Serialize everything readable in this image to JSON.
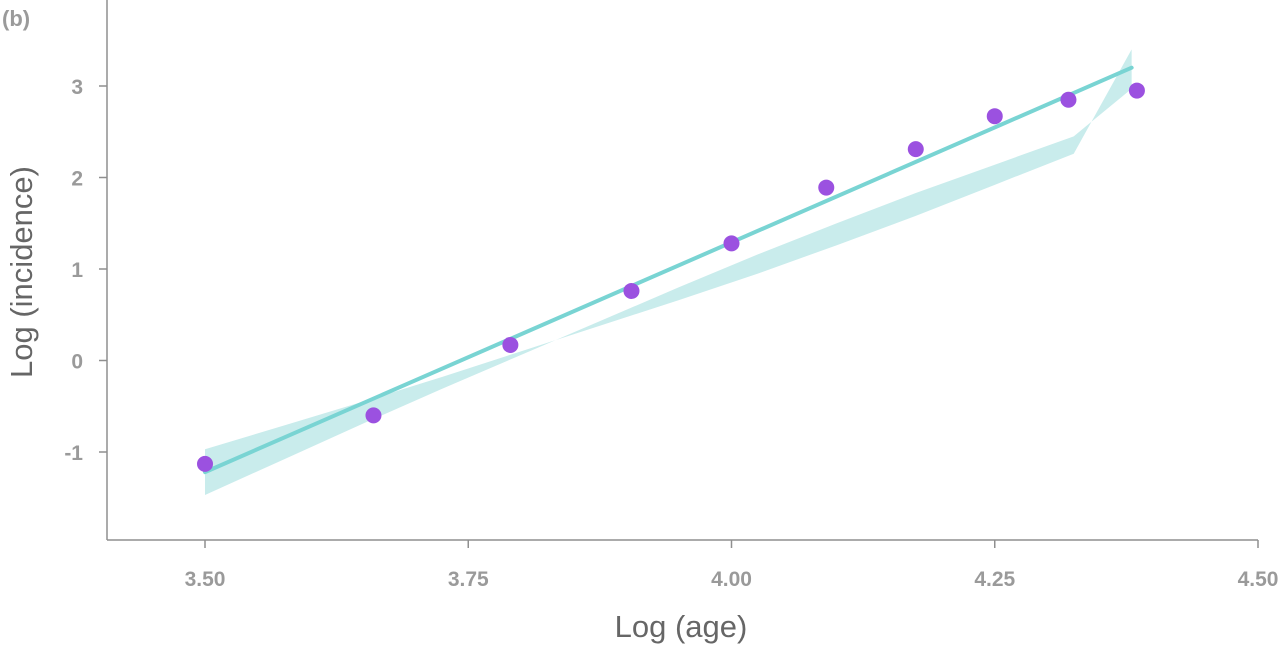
{
  "panel_label": "(b)",
  "chart_data": {
    "type": "scatter",
    "title": "",
    "xlabel": "Log (age)",
    "ylabel": "Log (incidence)",
    "xlim": [
      3.45,
      4.5
    ],
    "ylim": [
      -1.95,
      3.9
    ],
    "x_ticks": [
      3.5,
      3.75,
      4.0,
      4.25,
      4.5
    ],
    "x_tick_labels": [
      "3.50",
      "3.75",
      "4.00",
      "4.25",
      "4.50"
    ],
    "y_ticks": [
      -1,
      0,
      1,
      2,
      3
    ],
    "y_tick_labels": [
      "-1",
      "0",
      "1",
      "2",
      "3"
    ],
    "grid": false,
    "legend": "none",
    "series": [
      {
        "kind": "points",
        "color": "#9b51e0",
        "x": [
          3.5,
          3.66,
          3.79,
          3.905,
          4.0,
          4.09,
          4.175,
          4.25,
          4.32,
          4.385
        ],
        "y": [
          -1.13,
          -0.6,
          0.17,
          0.76,
          1.28,
          1.89,
          2.31,
          2.67,
          2.85,
          2.95
        ]
      },
      {
        "kind": "fit-line",
        "color": "#79d4d3",
        "band_color": "#c9ecec",
        "x": [
          3.5,
          3.575,
          3.65,
          3.725,
          3.8,
          3.875,
          3.95,
          4.025,
          4.1,
          4.175,
          4.25,
          4.325,
          4.38
        ],
        "y": [
          -1.22,
          -0.895,
          -0.57,
          -0.245,
          0.08,
          0.405,
          0.73,
          1.055,
          1.38,
          1.705,
          2.03,
          2.355,
          3.2
        ],
        "y_lower": [
          -1.47,
          -1.08,
          -0.69,
          -0.31,
          0.06,
          0.43,
          0.8,
          1.16,
          1.5,
          1.83,
          2.14,
          2.45,
          2.97
        ],
        "y_upper": [
          -0.97,
          -0.71,
          -0.45,
          -0.18,
          0.1,
          0.38,
          0.66,
          0.95,
          1.26,
          1.58,
          1.92,
          2.26,
          3.4
        ]
      }
    ]
  }
}
